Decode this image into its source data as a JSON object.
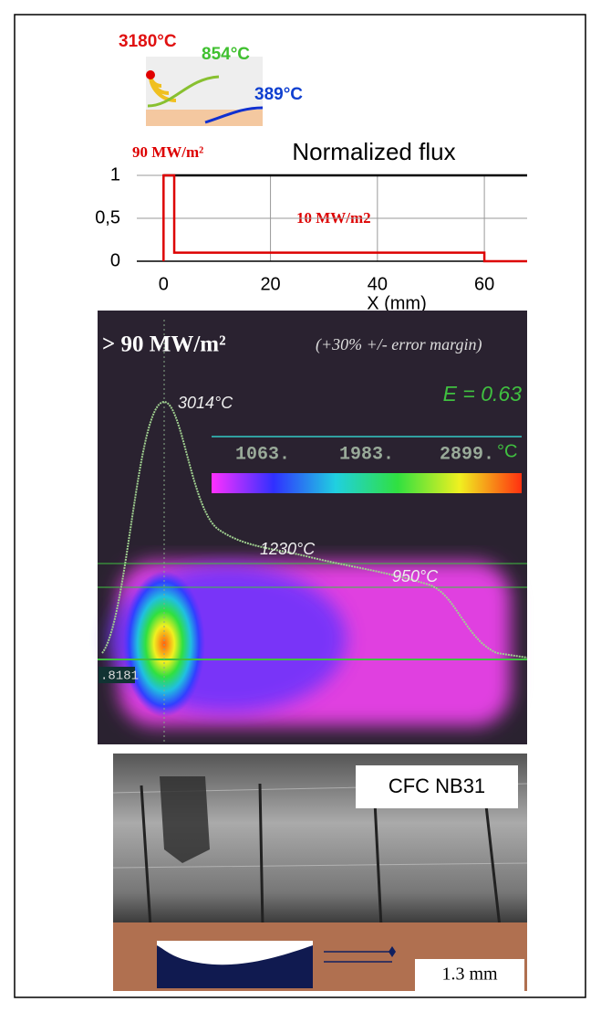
{
  "schematic": {
    "labels": [
      "3180°C",
      "854°C",
      "389°C"
    ]
  },
  "chart_data": {
    "type": "line",
    "title": "Normalized flux",
    "xlabel": "X (mm)",
    "annotations": [
      "90 MW/m²",
      "10 MW/m2"
    ],
    "x": [
      0,
      0,
      2,
      2,
      60,
      60,
      68
    ],
    "series": [
      {
        "color": "#dd0000",
        "values": [
          0,
          1,
          1,
          0.1,
          0.1,
          0,
          0
        ]
      },
      {
        "color": "#000000",
        "values": [
          1,
          1,
          1,
          1,
          1,
          1,
          1
        ]
      }
    ],
    "xlim": [
      -5,
      68
    ],
    "ylim": [
      0,
      1
    ],
    "xticks": [
      0,
      20,
      40,
      60
    ],
    "yticks": [
      0,
      {
        "value": 0.5,
        "label": "0,5"
      },
      1
    ],
    "grid": true
  },
  "thermal_image": {
    "title": "> 90 MW/m²",
    "subtitle": "(+30% +/- error margin)",
    "emissivity": "E = 0.63",
    "temperatures": [
      "3014°C",
      "1230°C",
      "950°C"
    ],
    "colorbar_labels": [
      "1063.",
      "1983.",
      "2899."
    ],
    "colorbar_unit": "°C",
    "cursor_label": ".8181"
  },
  "photo": {
    "material": "CFC NB31",
    "depth": "1.3 mm"
  }
}
